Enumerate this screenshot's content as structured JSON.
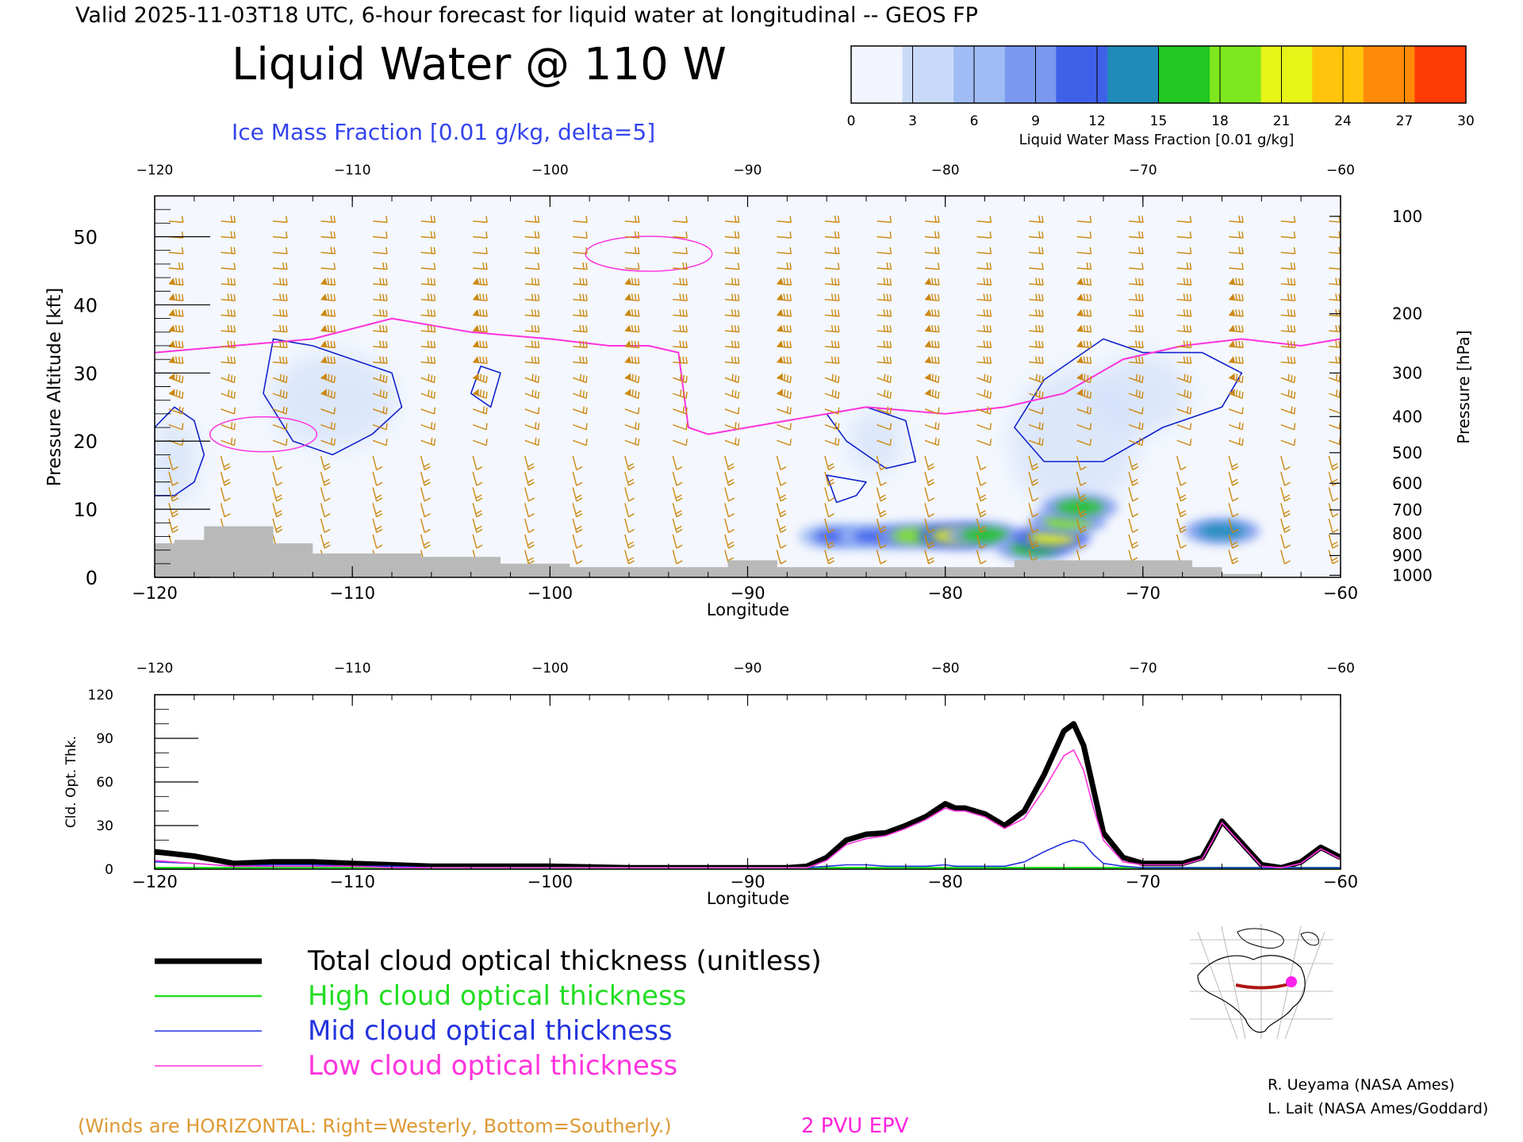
{
  "header": {
    "valid_line": "Valid 2025-11-03T18 UTC, 6-hour forecast for liquid water at longitudinal -- GEOS FP",
    "title": "Liquid Water @ 110 W",
    "subtitle": "Ice Mass Fraction [0.01 g/kg, delta=5]"
  },
  "colorbar": {
    "label": "Liquid Water Mass Fraction [0.01 g/kg]",
    "ticks": [
      "0",
      "3",
      "6",
      "9",
      "12",
      "15",
      "18",
      "21",
      "24",
      "27",
      "30"
    ],
    "colors": [
      "#f2f5fd",
      "#c9daf9",
      "#9fbcf4",
      "#7a98ee",
      "#3f61ea",
      "#1f8bb8",
      "#22c722",
      "#7ee81e",
      "#e7f418",
      "#ffc40b",
      "#ff8a08",
      "#ff3b05"
    ]
  },
  "footer": {
    "winds_note": "(Winds are HORIZONTAL: Right=Westerly, Bottom=Southerly.)",
    "epv_label": "2 PVU EPV",
    "credit1": "R. Ueyama (NASA Ames)",
    "credit2": "L. Lait (NASA Ames/Goddard)"
  },
  "legend": [
    {
      "label": "Total cloud optical thickness (unitless)",
      "color": "#000000"
    },
    {
      "label": "High cloud optical thickness",
      "color": "#22dd22"
    },
    {
      "label": "Mid cloud optical thickness",
      "color": "#2233dd"
    },
    {
      "label": "Low cloud optical thickness",
      "color": "#ff33dd"
    }
  ],
  "chart_data": [
    {
      "type": "heatmap",
      "title": "Liquid Water @ 110 W",
      "xlabel": "Longitude",
      "ylabel": "Pressure Altitude [kft]",
      "ylabel_right": "Pressure [hPa]",
      "xlim": [
        -120,
        -60
      ],
      "ylim": [
        0,
        56
      ],
      "xticks": [
        -120,
        -110,
        -100,
        -90,
        -80,
        -70,
        -60
      ],
      "yticks": [
        0,
        10,
        20,
        30,
        40,
        50
      ],
      "pressure_ticks": [
        {
          "label": "100",
          "kft": 53
        },
        {
          "label": "200",
          "kft": 38.7
        },
        {
          "label": "300",
          "kft": 30
        },
        {
          "label": "400",
          "kft": 23.6
        },
        {
          "label": "500",
          "kft": 18.3
        },
        {
          "label": "600",
          "kft": 13.8
        },
        {
          "label": "700",
          "kft": 9.9
        },
        {
          "label": "800",
          "kft": 6.4
        },
        {
          "label": "900",
          "kft": 3.2
        },
        {
          "label": "1000",
          "kft": 0.3
        }
      ],
      "liquid_water_blobs": [
        {
          "lon": -85.5,
          "kft": 6,
          "value": 11
        },
        {
          "lon": -83.5,
          "kft": 6,
          "value": 12
        },
        {
          "lon": -81.5,
          "kft": 6.1,
          "value": 18
        },
        {
          "lon": -79.5,
          "kft": 6.1,
          "value": 21
        },
        {
          "lon": -78.0,
          "kft": 6.2,
          "value": 17
        },
        {
          "lon": -75.5,
          "kft": 4.3,
          "value": 15
        },
        {
          "lon": -74.6,
          "kft": 5.8,
          "value": 20
        },
        {
          "lon": -73.8,
          "kft": 8.2,
          "value": 18
        },
        {
          "lon": -73.2,
          "kft": 10.3,
          "value": 16
        },
        {
          "lon": -66.0,
          "kft": 6.8,
          "value": 14
        }
      ],
      "epv_2pvu": {
        "lon": [
          -120,
          -116,
          -112,
          -108,
          -104,
          -100,
          -97,
          -95,
          -93.5,
          -93,
          -92,
          -88,
          -84,
          -80,
          -77,
          -74,
          -71,
          -68,
          -65,
          -62,
          -60
        ],
        "kft": [
          33,
          34,
          35,
          38,
          36,
          35,
          34,
          34,
          33,
          22,
          21,
          23,
          25,
          24,
          25,
          27,
          32,
          34,
          35,
          34,
          35
        ]
      },
      "ice_contours": [
        {
          "lon": [
            -120,
            -119,
            -118,
            -117.5,
            -118,
            -119,
            -120
          ],
          "kft": [
            22,
            25,
            23,
            18,
            14,
            12,
            12
          ]
        },
        {
          "lon": [
            -114,
            -112,
            -110,
            -108,
            -107.5,
            -109,
            -111,
            -113,
            -114.5,
            -114
          ],
          "kft": [
            35,
            34,
            32,
            30,
            25,
            21,
            18,
            20,
            27,
            35
          ]
        },
        {
          "lon": [
            -103.5,
            -102.5,
            -103,
            -104
          ],
          "kft": [
            31,
            30,
            25,
            27
          ]
        },
        {
          "lon": [
            -86,
            -84,
            -82,
            -81.5,
            -83,
            -85,
            -86
          ],
          "kft": [
            24,
            25,
            23,
            17,
            16,
            20,
            24
          ]
        },
        {
          "lon": [
            -86,
            -84,
            -84.5,
            -85.5,
            -86
          ],
          "kft": [
            15,
            14,
            12,
            11,
            15
          ]
        },
        {
          "lon": [
            -75,
            -72,
            -70,
            -67,
            -65,
            -66,
            -69,
            -72,
            -75,
            -76.5,
            -75
          ],
          "kft": [
            29,
            35,
            33,
            33,
            30,
            25,
            22,
            17,
            17,
            22,
            29
          ]
        }
      ],
      "terrain": [
        {
          "lon": -120,
          "kft": 5
        },
        {
          "lon": -119,
          "kft": 5.5
        },
        {
          "lon": -117.5,
          "kft": 7.5
        },
        {
          "lon": -114,
          "kft": 5
        },
        {
          "lon": -112,
          "kft": 3.5
        },
        {
          "lon": -106.5,
          "kft": 3
        },
        {
          "lon": -102.5,
          "kft": 2
        },
        {
          "lon": -99,
          "kft": 1.5
        },
        {
          "lon": -97,
          "kft": 1.5
        },
        {
          "lon": -91,
          "kft": 2.5
        },
        {
          "lon": -88.5,
          "kft": 1.5
        },
        {
          "lon": -76.5,
          "kft": 2.5
        },
        {
          "lon": -67.5,
          "kft": 1.5
        },
        {
          "lon": -66,
          "kft": 0.5
        },
        {
          "lon": -64,
          "kft": 0
        }
      ]
    },
    {
      "type": "line",
      "xlabel": "Longitude",
      "ylabel": "Cld. Opt. Thk.",
      "xlim": [
        -120,
        -60
      ],
      "ylim": [
        0,
        120
      ],
      "xticks": [
        -120,
        -110,
        -100,
        -90,
        -80,
        -70,
        -60
      ],
      "yticks": [
        0,
        30,
        60,
        90,
        120
      ],
      "x": [
        -120,
        -118,
        -116,
        -114,
        -112,
        -110,
        -108,
        -106,
        -104,
        -100,
        -96,
        -92,
        -90,
        -88,
        -87,
        -86,
        -85,
        -84,
        -83,
        -82,
        -81,
        -80,
        -79.5,
        -79,
        -78,
        -77,
        -76,
        -75,
        -74,
        -73.5,
        -73,
        -72.5,
        -72,
        -71,
        -70,
        -69,
        -68,
        -67,
        -66.5,
        -66,
        -65,
        -64,
        -63,
        -62,
        -61,
        -60
      ],
      "series": [
        {
          "name": "Total cloud optical thickness (unitless)",
          "values": [
            12,
            9,
            4,
            5,
            5,
            4,
            3,
            2,
            2,
            2,
            1,
            1,
            1,
            1,
            2,
            8,
            20,
            24,
            25,
            30,
            36,
            45,
            42,
            42,
            38,
            30,
            40,
            65,
            95,
            100,
            85,
            55,
            25,
            8,
            4,
            4,
            4,
            8,
            20,
            33,
            18,
            3,
            1,
            5,
            15,
            8
          ]
        },
        {
          "name": "High cloud optical thickness",
          "values": [
            1,
            1,
            1,
            1,
            1,
            1,
            1,
            1,
            1,
            1,
            1,
            1,
            1,
            1,
            1,
            1,
            1,
            1,
            1,
            1,
            1,
            1,
            1,
            1,
            1,
            1,
            1,
            1,
            1,
            1,
            1,
            1,
            1,
            1,
            1,
            1,
            1,
            1,
            1,
            1,
            1,
            1,
            1,
            1,
            1,
            1
          ]
        },
        {
          "name": "Mid cloud optical thickness",
          "values": [
            5,
            4,
            2,
            3,
            3,
            2,
            2,
            1,
            1,
            1,
            1,
            1,
            1,
            1,
            1,
            2,
            3,
            3,
            2,
            2,
            2,
            3,
            2,
            2,
            2,
            2,
            5,
            12,
            18,
            20,
            18,
            10,
            4,
            2,
            1,
            1,
            1,
            1,
            1,
            1,
            1,
            1,
            1,
            1,
            1,
            1
          ]
        },
        {
          "name": "Low cloud optical thickness",
          "values": [
            6,
            4,
            2,
            2,
            2,
            2,
            1,
            1,
            1,
            1,
            1,
            1,
            1,
            1,
            1,
            6,
            17,
            21,
            23,
            28,
            34,
            42,
            40,
            40,
            36,
            28,
            35,
            55,
            78,
            82,
            68,
            42,
            20,
            5,
            3,
            3,
            3,
            7,
            19,
            32,
            17,
            2,
            1,
            4,
            14,
            7
          ]
        }
      ]
    }
  ]
}
